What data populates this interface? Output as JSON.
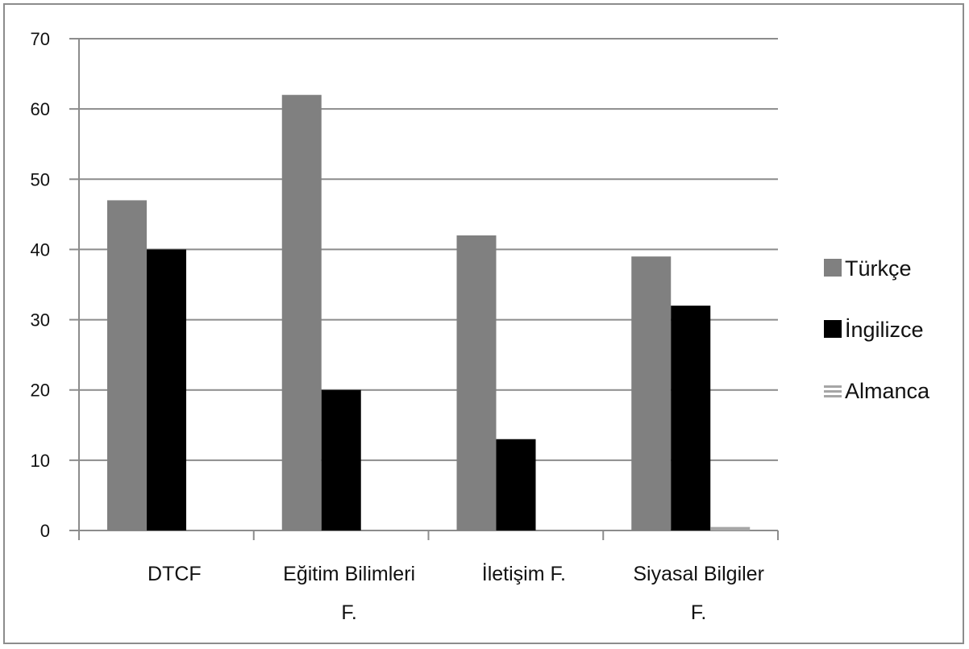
{
  "chart_data": {
    "type": "bar",
    "title": "",
    "xlabel": "",
    "ylabel": "",
    "ylim": [
      0,
      70
    ],
    "yticks": [
      0,
      10,
      20,
      30,
      40,
      50,
      60,
      70
    ],
    "grid": true,
    "legend_position": "right",
    "categories": [
      [
        "DTCF"
      ],
      [
        "Eğitim Bilimleri",
        "F."
      ],
      [
        "İletişim F."
      ],
      [
        "Siyasal Bilgiler",
        "F."
      ]
    ],
    "series": [
      {
        "name": "Türkçe",
        "color": "#808080",
        "values": [
          47,
          62,
          42,
          39
        ]
      },
      {
        "name": "İngilizce",
        "color": "#000000",
        "values": [
          40,
          20,
          13,
          32
        ]
      },
      {
        "name": "Almanca",
        "color": "#a6a6a6",
        "values": [
          0,
          0,
          0,
          0.5
        ]
      }
    ]
  }
}
